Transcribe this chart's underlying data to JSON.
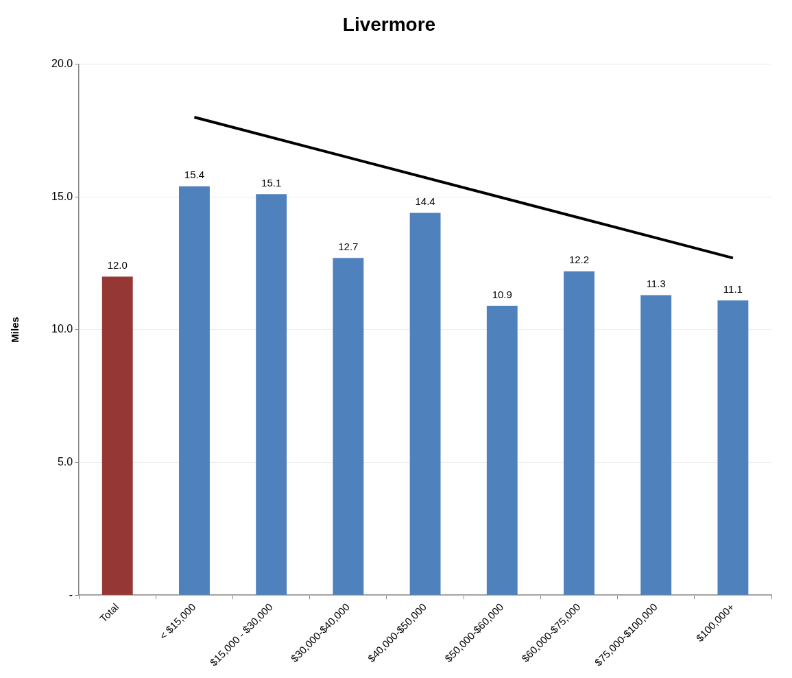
{
  "chart_data": {
    "type": "bar",
    "title": "Livermore",
    "ylabel": "Miles",
    "categories": [
      "Total",
      "< $15,000",
      "$15,000 - $30,000",
      "$30,000-$40,000",
      "$40,000-$50,000",
      "$50,000-$60,000",
      "$60,000-$75,000",
      "$75,000-$100,000",
      "$100,000+"
    ],
    "series": [
      {
        "colors": [
          "#953735",
          "#4f81bd",
          "#4f81bd",
          "#4f81bd",
          "#4f81bd",
          "#4f81bd",
          "#4f81bd",
          "#4f81bd",
          "#4f81bd"
        ],
        "values": [
          12.0,
          15.4,
          15.1,
          12.7,
          14.4,
          10.9,
          12.2,
          11.3,
          11.1
        ],
        "value_labels": [
          "12.0",
          "15.4",
          "15.1",
          "12.7",
          "14.4",
          "10.9",
          "12.2",
          "11.3",
          "11.1"
        ]
      },
      {
        "type": "line",
        "color": "#000000",
        "x": [
          "< $15,000",
          "$100,000+"
        ],
        "values": [
          18.0,
          12.7
        ],
        "marker": "none",
        "line_style": "solid"
      }
    ],
    "ylim": [
      0,
      20
    ],
    "yticks": [
      {
        "value": 0,
        "label": "-"
      },
      {
        "value": 5,
        "label": "5.0"
      },
      {
        "value": 10,
        "label": "10.0"
      },
      {
        "value": 15,
        "label": "15.0"
      },
      {
        "value": 20,
        "label": "20.0"
      }
    ],
    "grid": "y",
    "legend": false
  }
}
